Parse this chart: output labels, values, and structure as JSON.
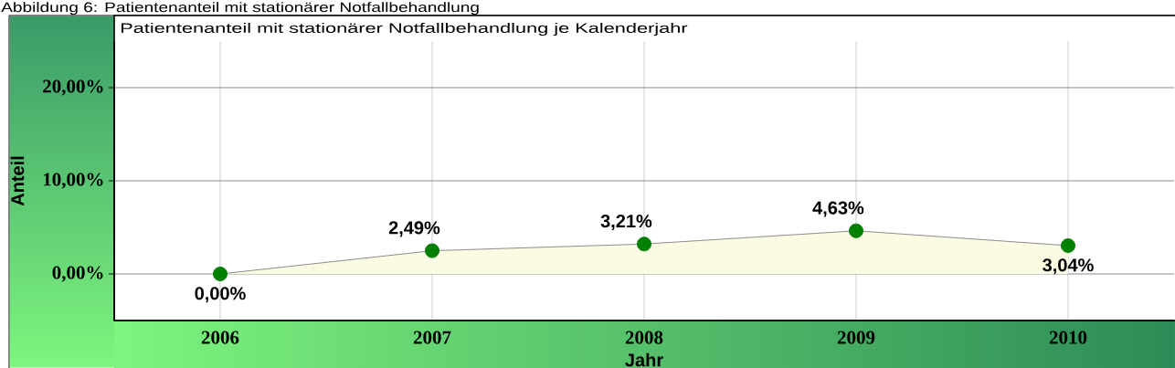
{
  "chart_data": {
    "type": "area",
    "title": "Abbildung 6: Patientenanteil mit stationärer Notfallbehandlung",
    "subtitle": "Patientenanteil mit stationärer Notfallbehandlung je Kalenderjahr",
    "xlabel": "Jahr",
    "ylabel": "Anteil",
    "x": [
      2006,
      2007,
      2008,
      2009,
      2010
    ],
    "values": [
      0,
      2.49,
      3.21,
      4.63,
      3.04
    ],
    "value_labels": [
      "0,00%",
      "2,49%",
      "3,21%",
      "4,63%",
      "3,04%"
    ],
    "color": "#008000",
    "marker": "circle",
    "xlim": [
      2005.5,
      2010.5
    ],
    "xticks": [
      2006,
      2007,
      2008,
      2009,
      2010
    ],
    "ylim": [
      -5,
      25
    ],
    "yticks": [
      {
        "value": 0,
        "label": "0,00%"
      },
      {
        "value": 10,
        "label": "10,00%"
      },
      {
        "value": 20,
        "label": "20,00%"
      }
    ],
    "grid": true
  }
}
